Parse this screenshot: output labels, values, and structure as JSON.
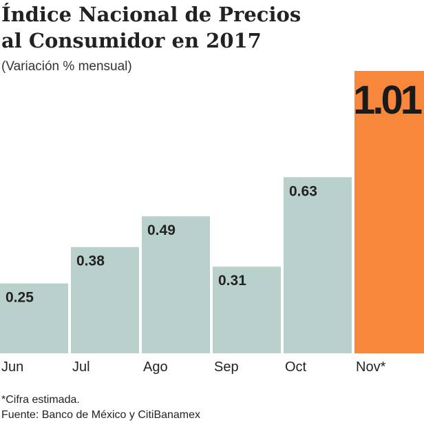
{
  "chart_data": {
    "type": "bar",
    "title": "Índice Nacional de Precios al Consumidor en 2017",
    "subtitle": "(Variación % mensual)",
    "categories": [
      "Jun",
      "Jul",
      "Ago",
      "Sep",
      "Oct",
      "Nov*"
    ],
    "values": [
      0.25,
      0.38,
      0.49,
      0.31,
      0.63,
      1.01
    ],
    "colors": [
      "#b9d0cd",
      "#b9d0cd",
      "#b9d0cd",
      "#b9d0cd",
      "#b9d0cd",
      "#f7873a"
    ],
    "notes": [
      "*Cifra estimada.",
      "Fuente: Banco de México y CitiBanamex"
    ]
  }
}
